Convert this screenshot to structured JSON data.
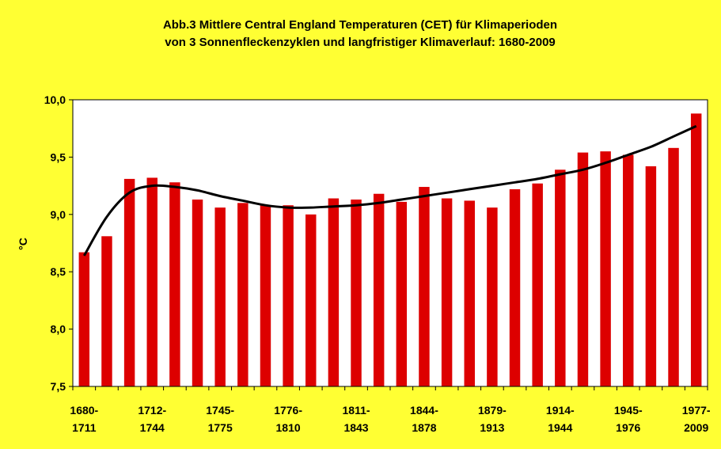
{
  "chart_data": {
    "type": "bar",
    "title": "Abb.3 Mittlere Central England Temperaturen (CET) für Klimaperioden",
    "subtitle": "von 3 Sonnenfleckenzyklen und langfristiger Klimaverlauf: 1680-2009",
    "ylabel": "°C",
    "ylim": [
      7.5,
      10.0
    ],
    "ytick_labels": [
      "7,5",
      "8,0",
      "8,5",
      "9,0",
      "9,5",
      "10,0"
    ],
    "yticks": [
      7.5,
      8.0,
      8.5,
      9.0,
      9.5,
      10.0
    ],
    "x_labels": [
      [
        "1680-",
        "1711"
      ],
      [
        "1712-",
        "1744"
      ],
      [
        "1745-",
        "1775"
      ],
      [
        "1776-",
        "1810"
      ],
      [
        "1811-",
        "1843"
      ],
      [
        "1844-",
        "1878"
      ],
      [
        "1879-",
        "1913"
      ],
      [
        "1914-",
        "1944"
      ],
      [
        "1945-",
        "1976"
      ],
      [
        "1977-",
        "2009"
      ]
    ],
    "values": [
      8.67,
      8.81,
      9.31,
      9.32,
      9.28,
      9.13,
      9.06,
      9.1,
      9.08,
      9.08,
      9.0,
      9.14,
      9.13,
      9.18,
      9.11,
      9.24,
      9.14,
      9.12,
      9.06,
      9.22,
      9.27,
      9.39,
      9.54,
      9.55,
      9.52,
      9.42,
      9.58,
      9.88
    ],
    "trend_values": [
      8.64,
      8.98,
      9.19,
      9.25,
      9.24,
      9.21,
      9.16,
      9.12,
      9.08,
      9.06,
      9.06,
      9.07,
      9.08,
      9.1,
      9.13,
      9.16,
      9.19,
      9.22,
      9.25,
      9.28,
      9.31,
      9.35,
      9.39,
      9.45,
      9.52,
      9.59,
      9.68,
      9.77
    ],
    "bar_color": "#dd0000",
    "trend_color": "#000000",
    "plot_background": "#ffffff",
    "page_background": "#ffff33",
    "grid": false,
    "legend": "none"
  }
}
